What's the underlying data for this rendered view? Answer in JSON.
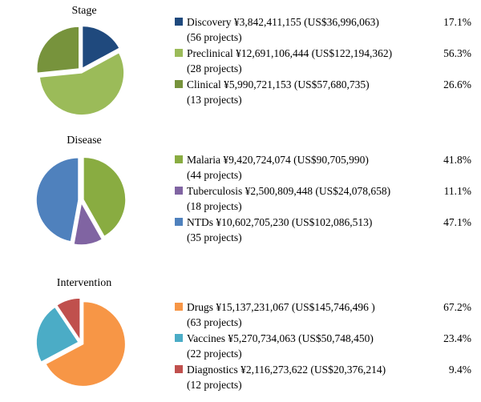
{
  "chart_data": [
    {
      "type": "pie",
      "title": "Stage",
      "legend_position": "right",
      "slices": [
        {
          "label": "Discovery",
          "value_jpy": 3842411155,
          "value_usd": 36996063,
          "percent": 17.1,
          "projects": 56,
          "color": "#1F497D",
          "legend": "Discovery ¥3,842,411,155 (US$36,996,063)",
          "percent_label": "17.1%",
          "projects_label": "(56 projects)"
        },
        {
          "label": "Preclinical",
          "value_jpy": 12691106444,
          "value_usd": 122194362,
          "percent": 56.3,
          "projects": 28,
          "color": "#9BBB59",
          "legend": "Preclinical ¥12,691,106,444 (US$122,194,362)",
          "percent_label": "56.3%",
          "projects_label": "(28 projects)"
        },
        {
          "label": "Clinical",
          "value_jpy": 5990721153,
          "value_usd": 57680735,
          "percent": 26.6,
          "projects": 13,
          "color": "#77933C",
          "legend": "Clinical ¥5,990,721,153 (US$57,680,735)",
          "percent_label": "26.6%",
          "projects_label": "(13 projects)"
        }
      ]
    },
    {
      "type": "pie",
      "title": "Disease",
      "legend_position": "right",
      "slices": [
        {
          "label": "Malaria",
          "value_jpy": 9420724074,
          "value_usd": 90705990,
          "percent": 41.8,
          "projects": 44,
          "color": "#89AC41",
          "legend": "Malaria ¥9,420,724,074 (US$90,705,990)",
          "percent_label": "41.8%",
          "projects_label": "(44 projects)"
        },
        {
          "label": "Tuberculosis",
          "value_jpy": 2500809448,
          "value_usd": 24078658,
          "percent": 11.1,
          "projects": 18,
          "color": "#8064A2",
          "legend": "Tuberculosis ¥2,500,809,448 (US$24,078,658)",
          "percent_label": "11.1%",
          "projects_label": "(18 projects)"
        },
        {
          "label": "NTDs",
          "value_jpy": 10602705230,
          "value_usd": 102086513,
          "percent": 47.1,
          "projects": 35,
          "color": "#4F81BD",
          "legend": "NTDs ¥10,602,705,230 (US$102,086,513)",
          "percent_label": "47.1%",
          "projects_label": "(35 projects)"
        }
      ]
    },
    {
      "type": "pie",
      "title": "Intervention",
      "legend_position": "right",
      "slices": [
        {
          "label": "Drugs",
          "value_jpy": 15137231067,
          "value_usd": 145746496,
          "percent": 67.2,
          "projects": 63,
          "color": "#F79646",
          "legend": "Drugs ¥15,137,231,067 (US$145,746,496 )",
          "percent_label": "67.2%",
          "projects_label": "(63 projects)"
        },
        {
          "label": "Vaccines",
          "value_jpy": 5270734063,
          "value_usd": 50748450,
          "percent": 23.4,
          "projects": 22,
          "color": "#4BACC6",
          "legend": "Vaccines ¥5,270,734,063 (US$50,748,450)",
          "percent_label": "23.4%",
          "projects_label": "(22 projects)"
        },
        {
          "label": "Diagnostics",
          "value_jpy": 2116273622,
          "value_usd": 20376214,
          "percent": 9.4,
          "projects": 12,
          "color": "#C0504D",
          "legend": "Diagnostics ¥2,116,273,622 (US$20,376,214)",
          "percent_label": "9.4%",
          "projects_label": "(12 projects)"
        }
      ]
    }
  ]
}
